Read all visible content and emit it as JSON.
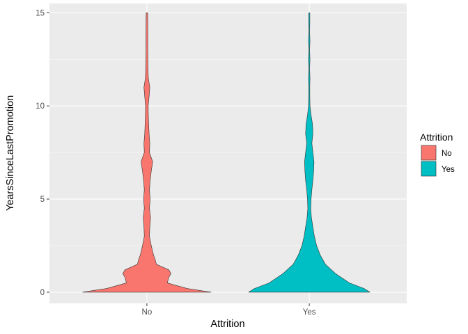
{
  "chart_data": {
    "type": "violin",
    "xlabel": "Attrition",
    "ylabel": "YearsSinceLastPromotion",
    "ylim": [
      -0.6,
      15.5
    ],
    "yticks": [
      "0",
      "5",
      "10",
      "15"
    ],
    "ytick_values": [
      0,
      5,
      10,
      15
    ],
    "categories": [
      "No",
      "Yes"
    ],
    "grid": true,
    "legend": {
      "title": "Attrition",
      "position": "right",
      "entries": [
        {
          "label": "No",
          "color": "#F8766D"
        },
        {
          "label": "Yes",
          "color": "#00BFC4"
        }
      ]
    },
    "series": [
      {
        "category": "No",
        "color": "#F8766D",
        "y": [
          0,
          0.2,
          0.5,
          0.8,
          1.0,
          1.2,
          1.5,
          1.8,
          2.0,
          2.5,
          3.0,
          3.5,
          4.0,
          4.5,
          5.0,
          5.5,
          6.0,
          6.5,
          7.0,
          7.5,
          8.0,
          8.5,
          9.0,
          9.5,
          10.0,
          10.5,
          11.0,
          11.5,
          12.0,
          13.0,
          14.0,
          15.0
        ],
        "half_width": [
          0.88,
          0.55,
          0.28,
          0.3,
          0.33,
          0.3,
          0.13,
          0.11,
          0.09,
          0.06,
          0.035,
          0.04,
          0.05,
          0.035,
          0.045,
          0.035,
          0.045,
          0.06,
          0.08,
          0.035,
          0.04,
          0.03,
          0.025,
          0.02,
          0.018,
          0.03,
          0.04,
          0.02,
          0.015,
          0.012,
          0.012,
          0.01
        ]
      },
      {
        "category": "Yes",
        "color": "#00BFC4",
        "y": [
          0,
          0.2,
          0.5,
          1.0,
          1.5,
          2.0,
          2.5,
          3.0,
          3.5,
          4.0,
          4.5,
          5.0,
          5.5,
          6.0,
          6.5,
          7.0,
          7.5,
          8.0,
          8.5,
          9.0,
          9.5,
          10.0,
          10.5,
          11.0,
          11.5,
          12.0,
          12.5,
          13.0,
          13.5,
          14.0,
          14.5,
          15.0
        ],
        "half_width": [
          0.83,
          0.75,
          0.55,
          0.36,
          0.22,
          0.15,
          0.1,
          0.07,
          0.05,
          0.03,
          0.02,
          0.025,
          0.035,
          0.05,
          0.06,
          0.065,
          0.05,
          0.035,
          0.05,
          0.045,
          0.025,
          0.01,
          0.008,
          0.007,
          0.01,
          0.005,
          0.01,
          0.005,
          0.01,
          0.005,
          0.008,
          0.008
        ]
      }
    ]
  }
}
